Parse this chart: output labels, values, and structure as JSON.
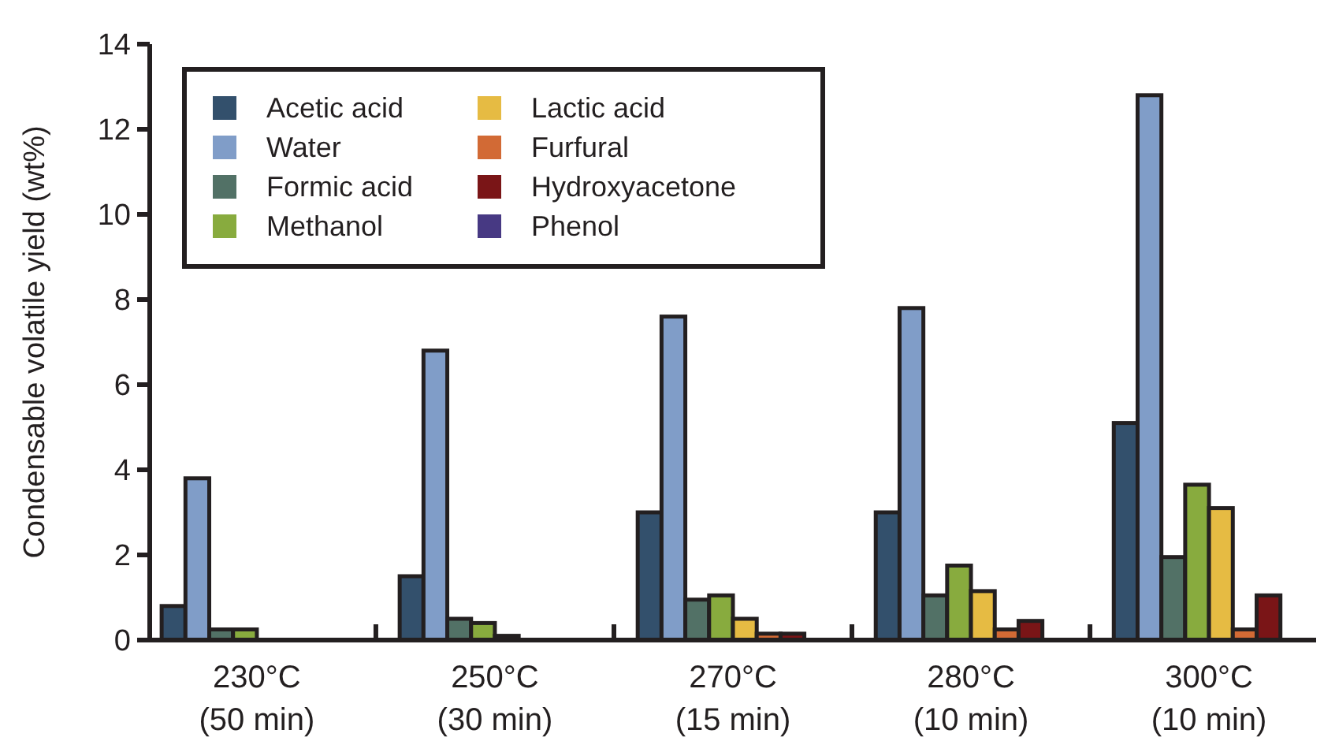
{
  "chart_data": {
    "type": "bar",
    "ylabel": "Condensable volatile yield (wt%)",
    "categories": [
      "230°C\n(50 min)",
      "250°C\n(30 min)",
      "270°C\n(15 min)",
      "280°C\n(10 min)",
      "300°C\n(10 min)"
    ],
    "series": [
      {
        "name": "Acetic acid",
        "color": "#33506c",
        "values": [
          0.8,
          1.5,
          3.0,
          3.0,
          5.1
        ]
      },
      {
        "name": "Water",
        "color": "#809dc8",
        "values": [
          3.8,
          6.8,
          7.6,
          7.8,
          12.8
        ]
      },
      {
        "name": "Formic acid",
        "color": "#527166",
        "values": [
          0.25,
          0.5,
          0.95,
          1.05,
          1.95
        ]
      },
      {
        "name": "Methanol",
        "color": "#88ab3e",
        "values": [
          0.25,
          0.4,
          1.05,
          1.75,
          3.65
        ]
      },
      {
        "name": "Lactic acid",
        "color": "#e6bb43",
        "values": [
          0,
          0.1,
          0.5,
          1.15,
          3.1
        ]
      },
      {
        "name": "Furfural",
        "color": "#d26a35",
        "values": [
          0,
          0,
          0.15,
          0.25,
          0.25
        ]
      },
      {
        "name": "Hydroxyacetone",
        "color": "#7a1517",
        "values": [
          0,
          0,
          0.15,
          0.45,
          1.05
        ]
      },
      {
        "name": "Phenol",
        "color": "#473983",
        "values": [
          0,
          0,
          0,
          0,
          0
        ]
      }
    ],
    "ylim": [
      0,
      14
    ],
    "yticks": [
      0,
      2,
      4,
      6,
      8,
      10,
      12,
      14
    ],
    "legend": "top left"
  }
}
